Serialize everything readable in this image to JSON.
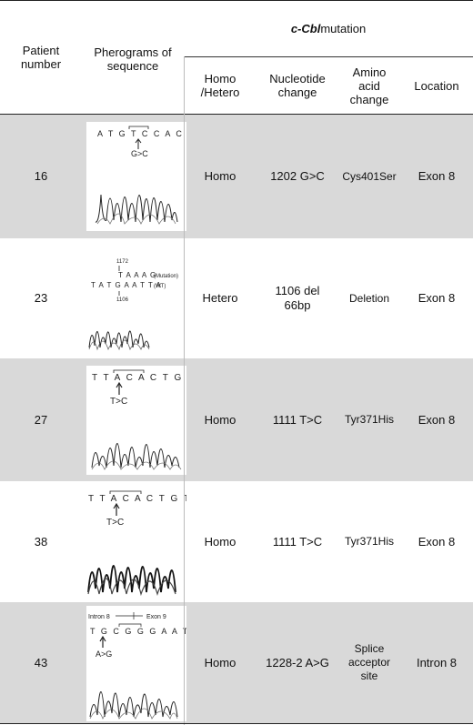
{
  "header": {
    "patient_number": "Patient number",
    "pherograms": "Pherograms of sequence",
    "mutation_title_italic": "c-Cbl",
    "mutation_title_rest": "mutation",
    "homo_hetero": "Homo /Hetero",
    "nucleotide_change": "Nucleotide change",
    "amino_acid_change": "Amino acid change",
    "location": "Location"
  },
  "rows": [
    {
      "patient": "16",
      "zygosity": "Homo",
      "nucleotide": "1202 G>C",
      "amino": "Cys401Ser",
      "location": "Exon 8",
      "shaded": true,
      "seq_top": "A T G T C C A C A",
      "seq_label": "G>C"
    },
    {
      "patient": "23",
      "zygosity": "Hetero",
      "nucleotide": "1106 del 66bp",
      "amino": "Deletion",
      "location": "Exon 8",
      "shaded": false,
      "seq_num1": "1172",
      "seq_mut": "T A A A G",
      "seq_mut_label": "(Mutation)",
      "seq_wt": "T A T G A A T T A",
      "seq_wt_label": "(WT)",
      "seq_num2": "1106"
    },
    {
      "patient": "27",
      "zygosity": "Homo",
      "nucleotide": "1111 T>C",
      "amino": "Tyr371His",
      "location": "Exon 8",
      "shaded": true,
      "seq_top": "T T A C A C T G T",
      "seq_label": "T>C"
    },
    {
      "patient": "38",
      "zygosity": "Homo",
      "nucleotide": "1111 T>C",
      "amino": "Tyr371His",
      "location": "Exon 8",
      "shaded": false,
      "seq_top": "T T A C A C T G T",
      "seq_label": "T>C"
    },
    {
      "patient": "43",
      "zygosity": "Homo",
      "nucleotide": "1228-2 A>G",
      "amino": "Splice acceptor site",
      "location": "Intron 8",
      "shaded": true,
      "seq_intron": "Intron 8",
      "seq_exon": "Exon 9",
      "seq_top": "T G C G G G A A T",
      "seq_label": "A>G"
    }
  ],
  "colors": {
    "shade": "#d9d9d9",
    "rule": "#222222"
  }
}
